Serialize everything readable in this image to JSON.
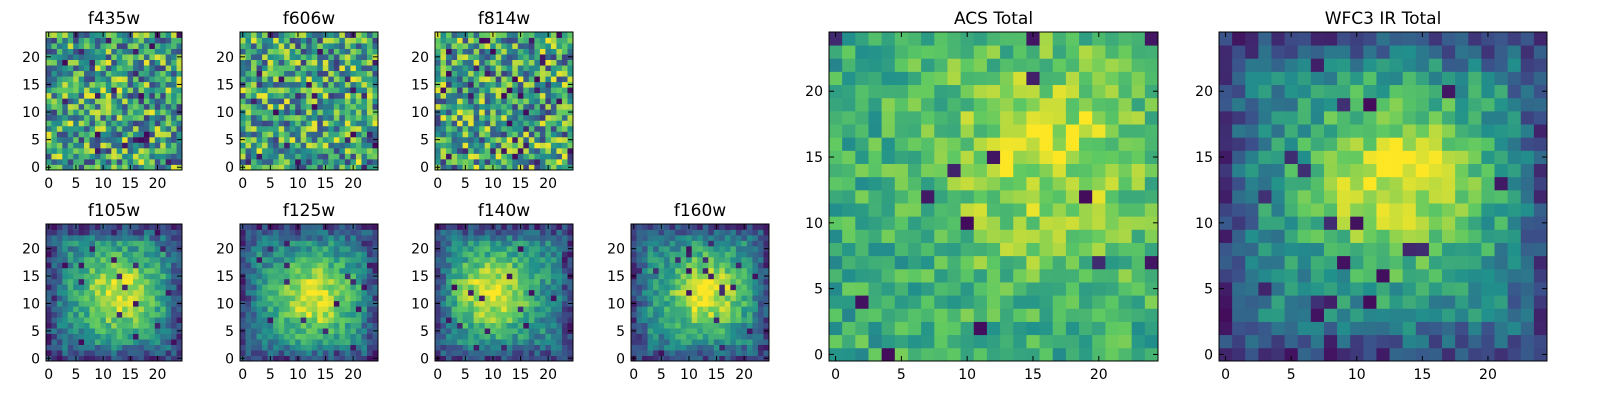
{
  "figure": {
    "colormap": "viridis",
    "colormap_stops": [
      "#440154",
      "#3b528b",
      "#21918c",
      "#5ec962",
      "#fde725"
    ]
  },
  "chart_data": [
    {
      "type": "heatmap",
      "title": "f435w",
      "pixels": 25,
      "xticks": [
        0,
        5,
        10,
        15,
        20
      ],
      "yticks": [
        0,
        5,
        10,
        15,
        20
      ],
      "xlim": [
        -0.5,
        24.5
      ],
      "ylim": [
        -0.5,
        24.5
      ],
      "profile": "noise",
      "values": []
    },
    {
      "type": "heatmap",
      "title": "f606w",
      "pixels": 25,
      "xticks": [
        0,
        5,
        10,
        15,
        20
      ],
      "yticks": [
        0,
        5,
        10,
        15,
        20
      ],
      "xlim": [
        -0.5,
        24.5
      ],
      "ylim": [
        -0.5,
        24.5
      ],
      "profile": "noise",
      "values": []
    },
    {
      "type": "heatmap",
      "title": "f814w",
      "pixels": 25,
      "xticks": [
        0,
        5,
        10,
        15,
        20
      ],
      "yticks": [
        0,
        5,
        10,
        15,
        20
      ],
      "xlim": [
        -0.5,
        24.5
      ],
      "ylim": [
        -0.5,
        24.5
      ],
      "profile": "noise",
      "values": []
    },
    {
      "type": "heatmap",
      "title": "f105w",
      "pixels": 25,
      "xticks": [
        0,
        5,
        10,
        15,
        20
      ],
      "yticks": [
        0,
        5,
        10,
        15,
        20
      ],
      "xlim": [
        -0.5,
        24.5
      ],
      "ylim": [
        -0.5,
        24.5
      ],
      "profile": "blob",
      "center": [
        13,
        12
      ],
      "values": []
    },
    {
      "type": "heatmap",
      "title": "f125w",
      "pixels": 25,
      "xticks": [
        0,
        5,
        10,
        15,
        20
      ],
      "yticks": [
        0,
        5,
        10,
        15,
        20
      ],
      "xlim": [
        -0.5,
        24.5
      ],
      "ylim": [
        -0.5,
        24.5
      ],
      "profile": "blob",
      "center": [
        13,
        11
      ],
      "values": []
    },
    {
      "type": "heatmap",
      "title": "f140w",
      "pixels": 25,
      "xticks": [
        0,
        5,
        10,
        15,
        20
      ],
      "yticks": [
        0,
        5,
        10,
        15,
        20
      ],
      "xlim": [
        -0.5,
        24.5
      ],
      "ylim": [
        -0.5,
        24.5
      ],
      "profile": "blob",
      "center": [
        10,
        12
      ],
      "values": []
    },
    {
      "type": "heatmap",
      "title": "f160w",
      "pixels": 25,
      "xticks": [
        0,
        5,
        10,
        15,
        20
      ],
      "yticks": [
        0,
        5,
        10,
        15,
        20
      ],
      "xlim": [
        -0.5,
        24.5
      ],
      "ylim": [
        -0.5,
        24.5
      ],
      "profile": "blob",
      "center": [
        13,
        12
      ],
      "values": []
    },
    {
      "type": "heatmap",
      "title": "ACS Total",
      "pixels": 25,
      "xticks": [
        0,
        5,
        10,
        15,
        20
      ],
      "yticks": [
        0,
        5,
        10,
        15,
        20
      ],
      "xlim": [
        -0.5,
        24.5
      ],
      "ylim": [
        -0.5,
        24.5
      ],
      "profile": "soft",
      "center": [
        16,
        15
      ],
      "values": []
    },
    {
      "type": "heatmap",
      "title": "WFC3 IR Total",
      "pixels": 25,
      "xticks": [
        0,
        5,
        10,
        15,
        20
      ],
      "yticks": [
        0,
        5,
        10,
        15,
        20
      ],
      "xlim": [
        -0.5,
        24.5
      ],
      "ylim": [
        -0.5,
        24.5
      ],
      "profile": "blob",
      "center": [
        13,
        13
      ],
      "values": []
    }
  ]
}
